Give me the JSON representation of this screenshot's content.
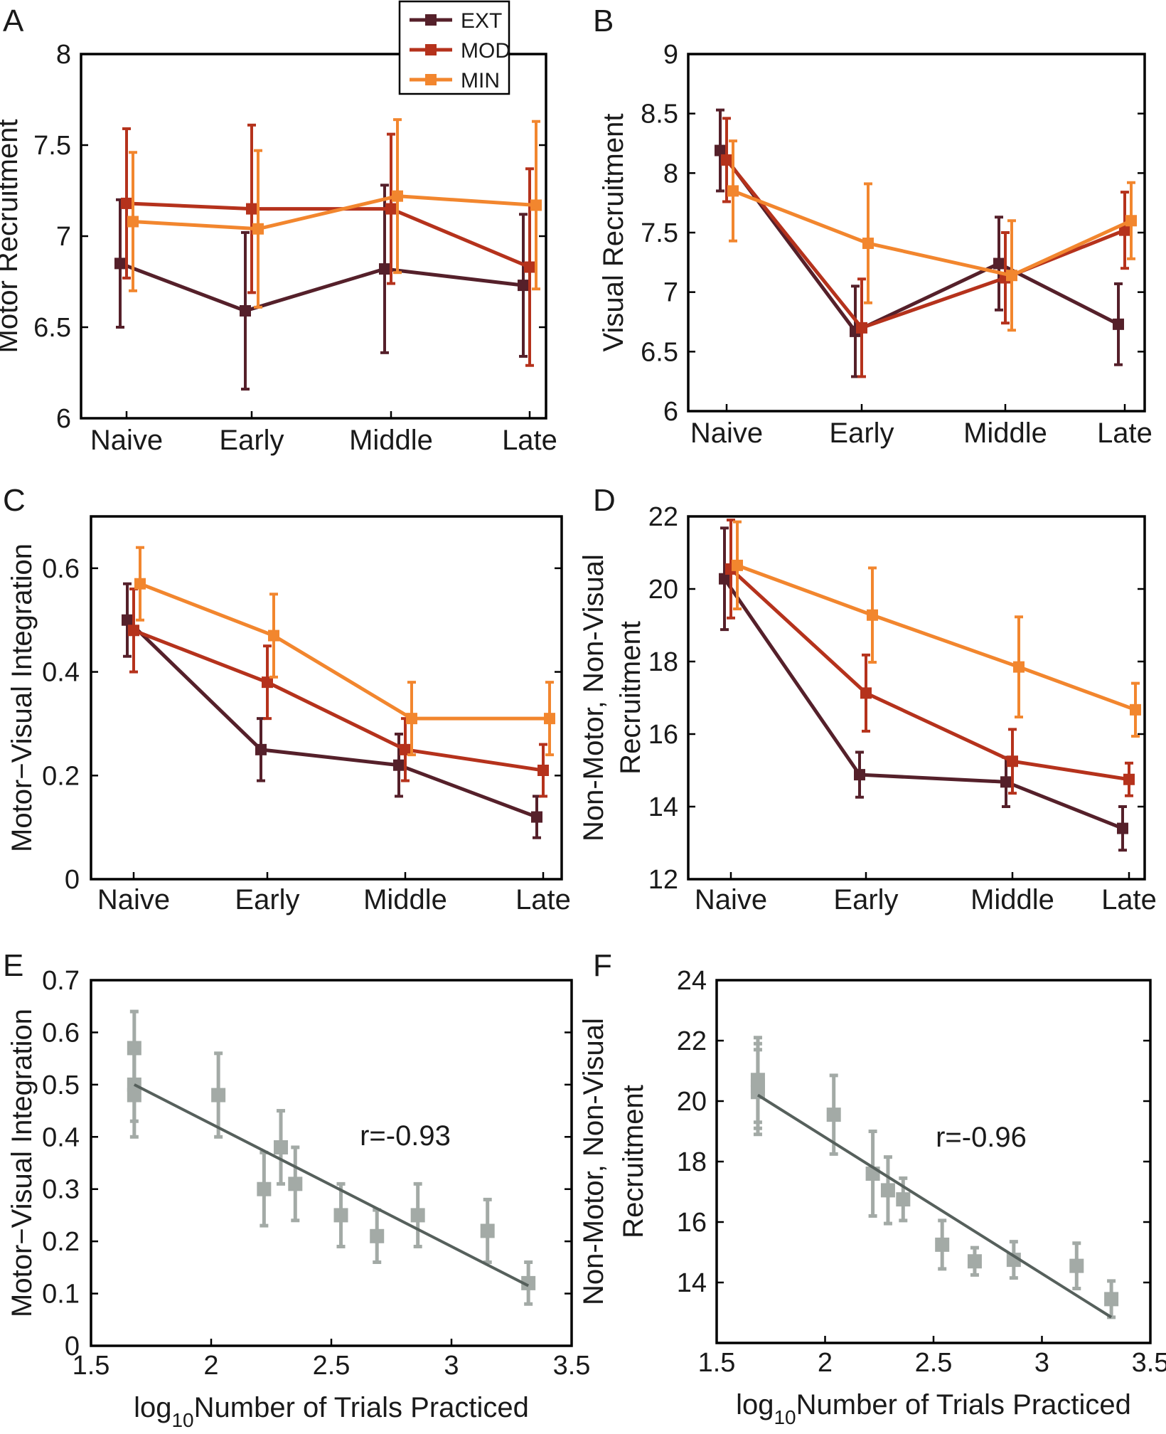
{
  "colors": {
    "EXT": "#55202a",
    "MOD": "#b5321c",
    "MIN": "#f2862e",
    "scatter": "#a3aaa6",
    "fit": "#56605c"
  },
  "legend": {
    "entries": [
      "EXT",
      "MOD",
      "MIN"
    ],
    "placement": "top-right of panel A"
  },
  "chart_data": [
    {
      "panel": "A",
      "type": "line",
      "title": "",
      "xlabel": "",
      "ylabel": "Motor Recruitment",
      "categories": [
        "Naive",
        "Early",
        "Middle",
        "Late"
      ],
      "ylim": [
        6,
        8
      ],
      "yticks": [
        "6",
        "6.5",
        "7",
        "7.5",
        "8"
      ],
      "series": [
        {
          "name": "EXT",
          "values": [
            6.85,
            6.59,
            6.82,
            6.73
          ],
          "errors": [
            0.35,
            0.43,
            0.46,
            0.39
          ]
        },
        {
          "name": "MOD",
          "values": [
            7.18,
            7.15,
            7.15,
            6.83
          ],
          "errors": [
            0.41,
            0.46,
            0.41,
            0.54
          ]
        },
        {
          "name": "MIN",
          "values": [
            7.08,
            7.04,
            7.22,
            7.17
          ],
          "errors": [
            0.38,
            0.43,
            0.42,
            0.46
          ]
        }
      ]
    },
    {
      "panel": "B",
      "type": "line",
      "title": "",
      "xlabel": "",
      "ylabel": "Visual Recruitment",
      "categories": [
        "Naive",
        "Early",
        "Middle",
        "Late"
      ],
      "ylim": [
        6,
        9
      ],
      "yticks": [
        "6",
        "6.5",
        "7",
        "7.5",
        "8",
        "8.5",
        "9"
      ],
      "series": [
        {
          "name": "EXT",
          "values": [
            8.19,
            6.67,
            7.24,
            6.73
          ],
          "errors": [
            0.34,
            0.38,
            0.39,
            0.34
          ]
        },
        {
          "name": "MOD",
          "values": [
            8.11,
            6.7,
            7.12,
            7.52
          ],
          "errors": [
            0.35,
            0.41,
            0.38,
            0.32
          ]
        },
        {
          "name": "MIN",
          "values": [
            7.85,
            7.41,
            7.14,
            7.6
          ],
          "errors": [
            0.42,
            0.5,
            0.46,
            0.32
          ]
        }
      ]
    },
    {
      "panel": "C",
      "type": "line",
      "title": "",
      "xlabel": "",
      "ylabel": "Motor−Visual Integration",
      "categories": [
        "Naive",
        "Early",
        "Middle",
        "Late"
      ],
      "ylim": [
        0,
        0.7
      ],
      "yticks": [
        "0",
        "0.2",
        "0.4",
        "0.6"
      ],
      "series": [
        {
          "name": "EXT",
          "values": [
            0.5,
            0.25,
            0.22,
            0.12
          ],
          "errors": [
            0.07,
            0.06,
            0.06,
            0.04
          ]
        },
        {
          "name": "MOD",
          "values": [
            0.48,
            0.38,
            0.25,
            0.21
          ],
          "errors": [
            0.08,
            0.07,
            0.06,
            0.05
          ]
        },
        {
          "name": "MIN",
          "values": [
            0.57,
            0.47,
            0.31,
            0.31
          ],
          "errors": [
            0.07,
            0.08,
            0.07,
            0.07
          ]
        }
      ]
    },
    {
      "panel": "D",
      "type": "line",
      "title": "",
      "xlabel": "",
      "ylabel": "Non-Motor, Non-Visual Recruitment",
      "ylabel_lines": [
        "Non-Motor, Non-Visual",
        "Recruitment"
      ],
      "categories": [
        "Naive",
        "Early",
        "Middle",
        "Late"
      ],
      "ylim": [
        12,
        22
      ],
      "yticks": [
        "12",
        "14",
        "16",
        "18",
        "20",
        "22"
      ],
      "series": [
        {
          "name": "EXT",
          "values": [
            20.28,
            14.88,
            14.68,
            13.4
          ],
          "errors": [
            1.4,
            0.62,
            0.68,
            0.6
          ]
        },
        {
          "name": "MOD",
          "values": [
            20.55,
            17.13,
            15.25,
            14.75
          ],
          "errors": [
            1.35,
            1.05,
            0.88,
            0.45
          ]
        },
        {
          "name": "MIN",
          "values": [
            20.65,
            19.28,
            17.85,
            16.67
          ],
          "errors": [
            1.2,
            1.3,
            1.38,
            0.73
          ]
        }
      ]
    },
    {
      "panel": "E",
      "type": "scatter",
      "title": "",
      "xlabel": "log10Number of Trials Practiced",
      "xlabel_parts": [
        "log",
        "10",
        "Number of Trials Practiced"
      ],
      "ylabel": "Motor−Visual Integration",
      "xlim": [
        1.5,
        3.5
      ],
      "ylim": [
        0,
        0.7
      ],
      "xticks": [
        "1.5",
        "2",
        "2.5",
        "3",
        "3.5"
      ],
      "yticks": [
        "0",
        "0.1",
        "0.2",
        "0.3",
        "0.4",
        "0.5",
        "0.6",
        "0.7"
      ],
      "annotation": "r=-0.93",
      "points": [
        {
          "x": 1.68,
          "y": 0.57,
          "err": 0.07
        },
        {
          "x": 1.68,
          "y": 0.5,
          "err": 0.07
        },
        {
          "x": 1.68,
          "y": 0.48,
          "err": 0.08
        },
        {
          "x": 2.03,
          "y": 0.48,
          "err": 0.08
        },
        {
          "x": 2.22,
          "y": 0.3,
          "err": 0.07
        },
        {
          "x": 2.29,
          "y": 0.38,
          "err": 0.07
        },
        {
          "x": 2.35,
          "y": 0.31,
          "err": 0.07
        },
        {
          "x": 2.54,
          "y": 0.25,
          "err": 0.06
        },
        {
          "x": 2.69,
          "y": 0.21,
          "err": 0.05
        },
        {
          "x": 2.86,
          "y": 0.25,
          "err": 0.06
        },
        {
          "x": 3.15,
          "y": 0.22,
          "err": 0.06
        },
        {
          "x": 3.32,
          "y": 0.12,
          "err": 0.04
        }
      ],
      "fit": {
        "x": [
          1.68,
          3.32
        ],
        "y": [
          0.5,
          0.115
        ]
      }
    },
    {
      "panel": "F",
      "type": "scatter",
      "title": "",
      "xlabel": "log10Number of Trials Practiced",
      "xlabel_parts": [
        "log",
        "10",
        "Number of Trials Practiced"
      ],
      "ylabel": "Non-Motor, Non-Visual Recruitment",
      "ylabel_lines": [
        "Non-Motor, Non-Visual",
        "Recruitment"
      ],
      "xlim": [
        1.5,
        3.5
      ],
      "ylim": [
        12,
        24
      ],
      "xticks": [
        "1.5",
        "2",
        "2.5",
        "3",
        "3.5"
      ],
      "yticks": [
        "14",
        "16",
        "18",
        "20",
        "22",
        "24"
      ],
      "annotation": "r=-0.96",
      "points": [
        {
          "x": 1.69,
          "y": 20.7,
          "err": 1.4
        },
        {
          "x": 1.69,
          "y": 20.5,
          "err": 1.4
        },
        {
          "x": 1.69,
          "y": 20.3,
          "err": 1.4
        },
        {
          "x": 2.04,
          "y": 19.55,
          "err": 1.3
        },
        {
          "x": 2.22,
          "y": 17.6,
          "err": 1.4
        },
        {
          "x": 2.29,
          "y": 17.05,
          "err": 1.1
        },
        {
          "x": 2.36,
          "y": 16.75,
          "err": 0.7
        },
        {
          "x": 2.54,
          "y": 15.25,
          "err": 0.8
        },
        {
          "x": 2.69,
          "y": 14.7,
          "err": 0.45
        },
        {
          "x": 2.87,
          "y": 14.75,
          "err": 0.6
        },
        {
          "x": 3.16,
          "y": 14.55,
          "err": 0.75
        },
        {
          "x": 3.32,
          "y": 13.45,
          "err": 0.6
        }
      ],
      "fit": {
        "x": [
          1.69,
          3.32
        ],
        "y": [
          20.2,
          12.85
        ]
      }
    }
  ]
}
